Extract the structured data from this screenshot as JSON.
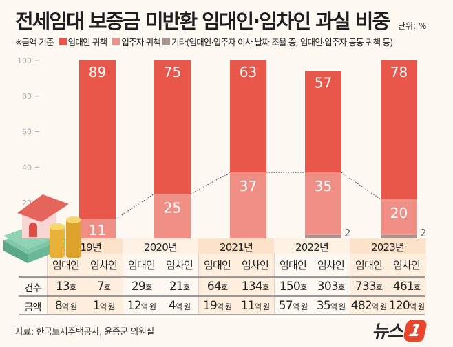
{
  "title": "전세임대 보증금 미반환 임대인·임차인 과실 비중",
  "unit": "단위: %",
  "legend": {
    "note": "※금액 기준",
    "items": [
      {
        "label": "임대인 귀책",
        "color": "#e8574a"
      },
      {
        "label": "입주자 귀책",
        "color": "#ef8f85"
      },
      {
        "label": "기타(임대인·입주자 이사 날짜 조율 중, 임대인·입주자 공동 귀책 등)",
        "color": "#a8938d"
      }
    ]
  },
  "chart_data": {
    "type": "bar",
    "stacked": true,
    "categories": [
      "2019년",
      "2020년",
      "2021년",
      "2022년",
      "2023년"
    ],
    "series": [
      {
        "name": "기타(임대인·입주자 이사 날짜 조율 중, 임대인·입주자 공동 귀책 등)",
        "values": [
          0,
          0,
          0,
          2,
          2
        ],
        "color": "#a8938d"
      },
      {
        "name": "입주자 귀책",
        "values": [
          11,
          25,
          37,
          35,
          20
        ],
        "color": "#ef8f85"
      },
      {
        "name": "임대인 귀책",
        "values": [
          89,
          75,
          63,
          57,
          78
        ],
        "color": "#e8574a"
      }
    ],
    "yticks": [
      "100",
      "80",
      "60",
      "40",
      "20"
    ],
    "ylim": [
      0,
      100
    ]
  },
  "table": {
    "row_labels": [
      "건수",
      "금액"
    ],
    "sub_headers": [
      "임대인",
      "임차인"
    ],
    "years": [
      {
        "year": "2019년",
        "count": [
          [
            "13",
            "호"
          ],
          [
            "7",
            "호"
          ]
        ],
        "amount": [
          [
            "8",
            "억 원"
          ],
          [
            "1",
            "억 원"
          ]
        ]
      },
      {
        "year": "2020년",
        "count": [
          [
            "29",
            "호"
          ],
          [
            "21",
            "호"
          ]
        ],
        "amount": [
          [
            "12",
            "억 원"
          ],
          [
            "4",
            "억 원"
          ]
        ]
      },
      {
        "year": "2021년",
        "count": [
          [
            "64",
            "호"
          ],
          [
            "134",
            "호"
          ]
        ],
        "amount": [
          [
            "19",
            "억 원"
          ],
          [
            "11",
            "억 원"
          ]
        ]
      },
      {
        "year": "2022년",
        "count": [
          [
            "150",
            "호"
          ],
          [
            "303",
            "호"
          ]
        ],
        "amount": [
          [
            "57",
            "억 원"
          ],
          [
            "35",
            "억 원"
          ]
        ]
      },
      {
        "year": "2023년",
        "count": [
          [
            "733",
            "호"
          ],
          [
            "461",
            "호"
          ]
        ],
        "amount": [
          [
            "482",
            "억 원"
          ],
          [
            "120",
            "억 원"
          ]
        ]
      }
    ]
  },
  "source": "자료: 한국토지주택공사, 윤종군 의원실",
  "logo": {
    "text": "뉴스",
    "mark": "1"
  }
}
